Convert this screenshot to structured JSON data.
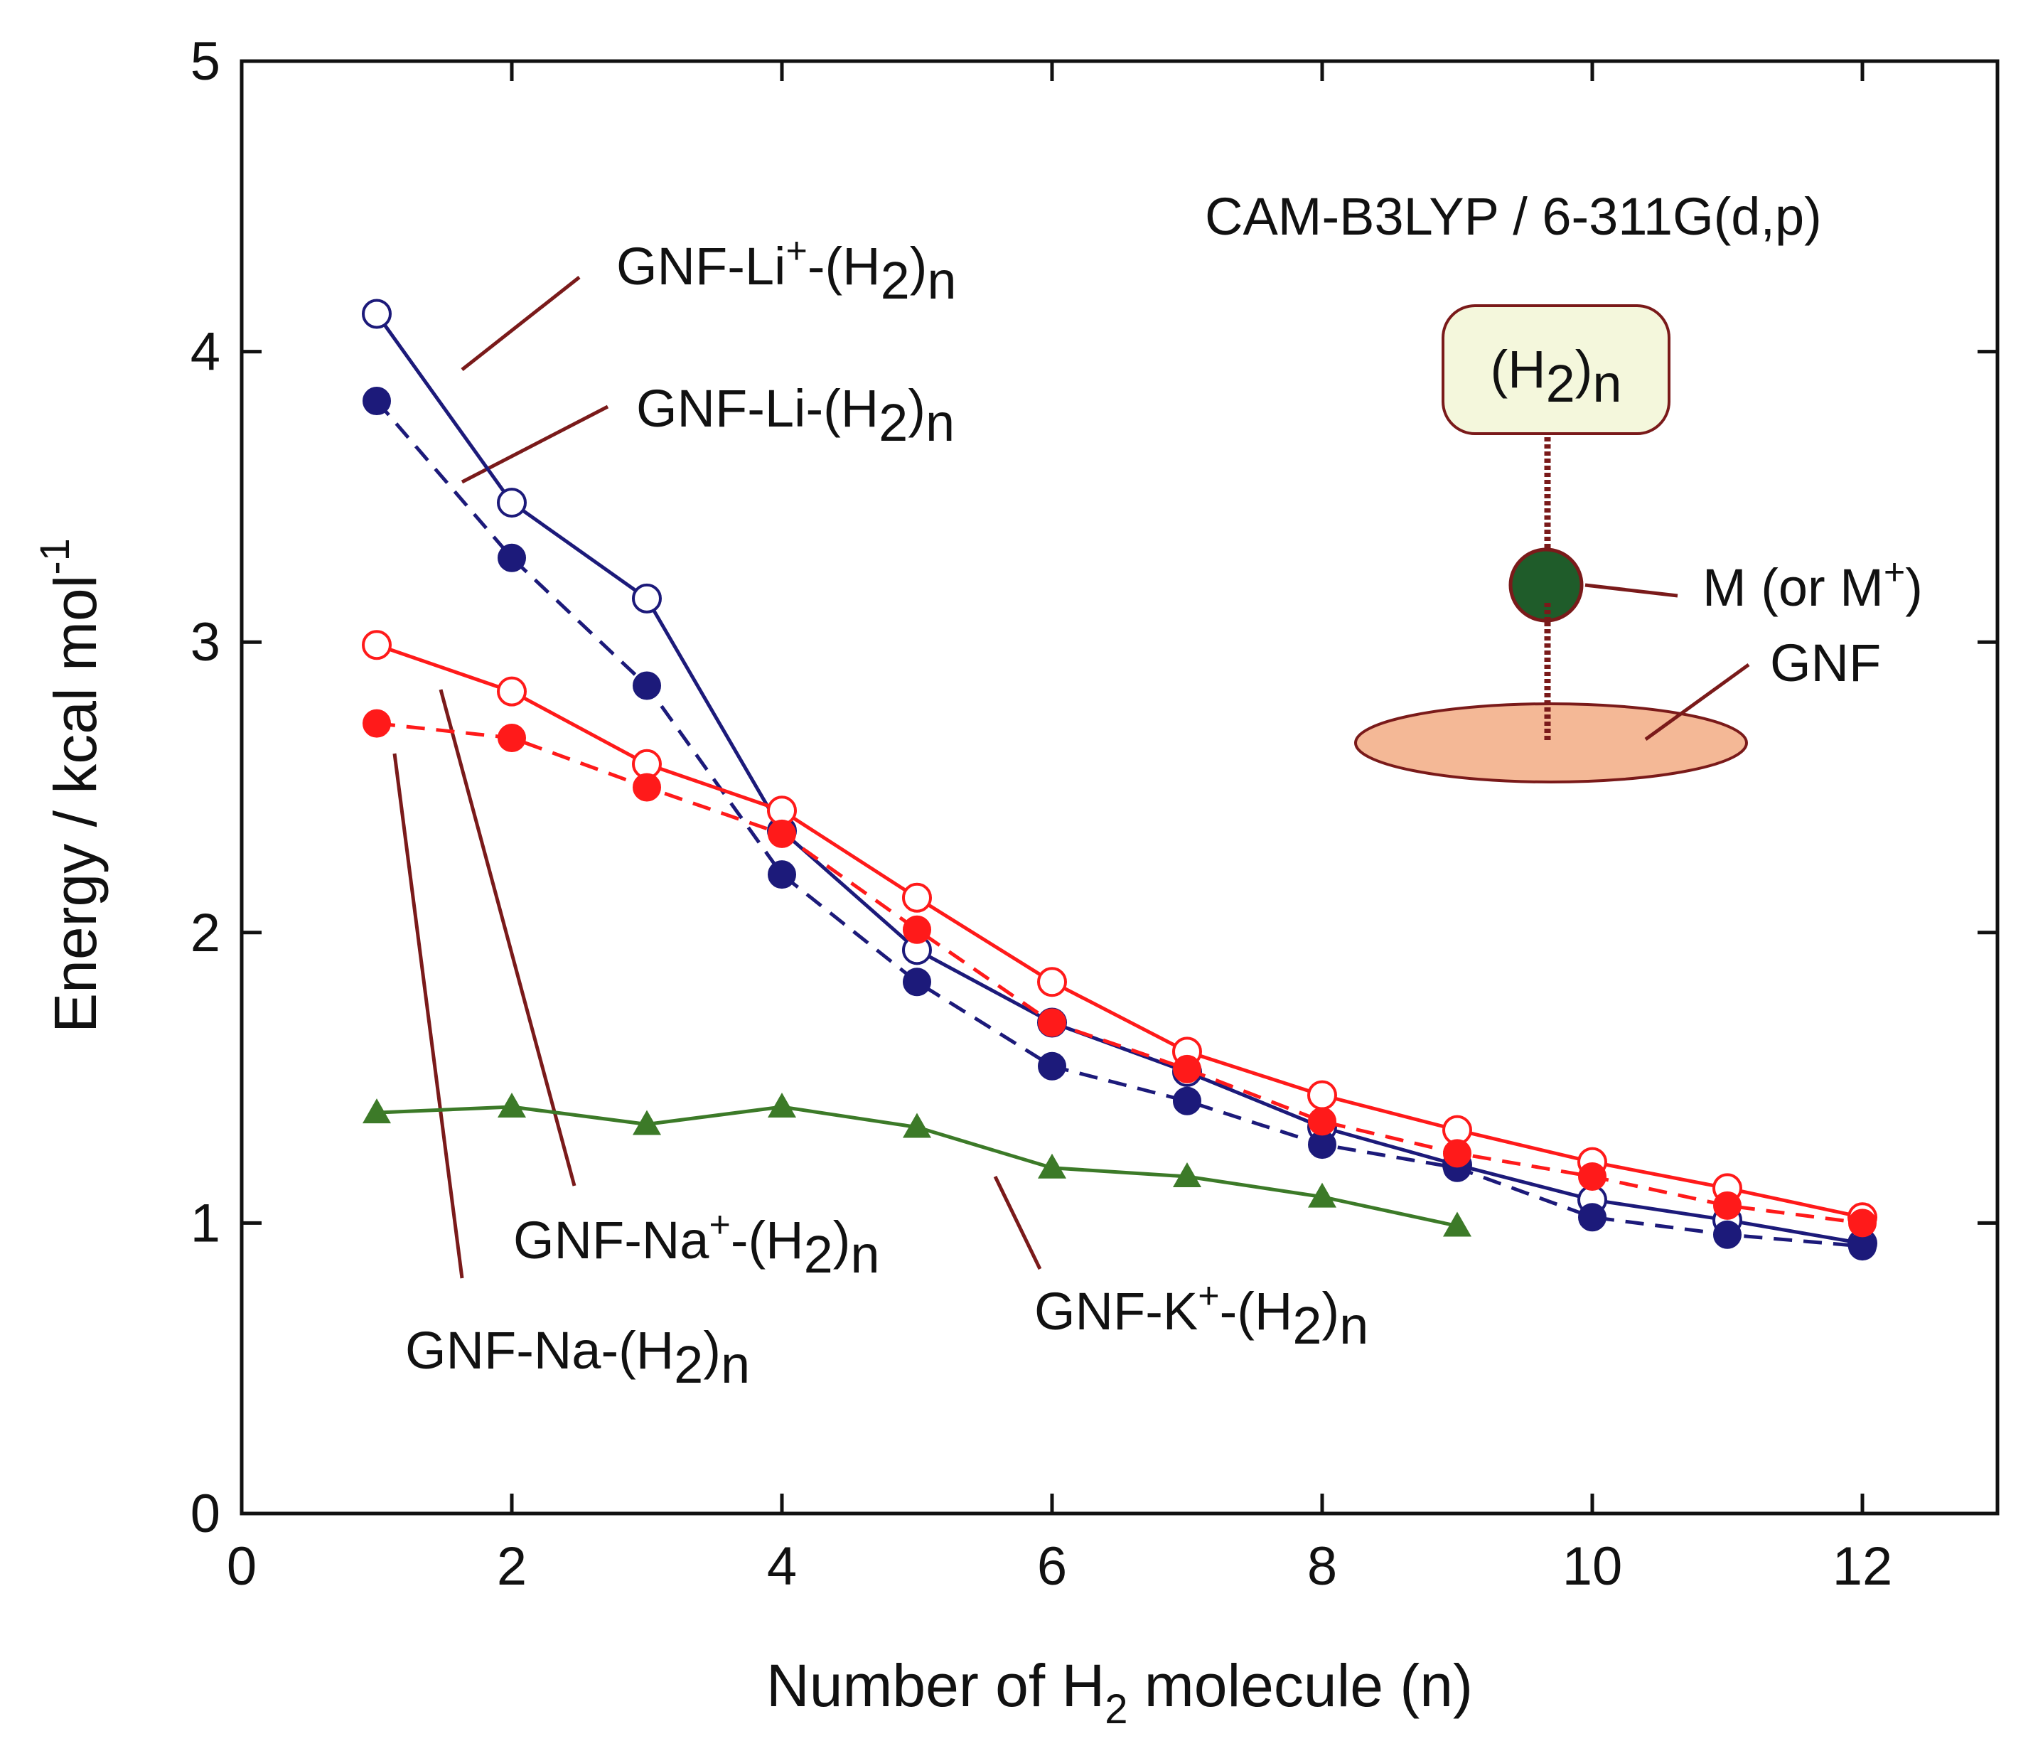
{
  "chart_data": {
    "type": "line",
    "title": "",
    "xlabel": "Number of H",
    "xlabel_sub": "2",
    "xlabel_tail": " molecule (n)",
    "ylabel": "Energy / kcal mol",
    "ylabel_sup": "-1",
    "xlim": [
      0,
      13
    ],
    "ylim": [
      0,
      5
    ],
    "xticks": [
      0,
      2,
      4,
      6,
      8,
      10,
      12
    ],
    "yticks": [
      0,
      1,
      2,
      3,
      4,
      5
    ],
    "method_label": "CAM-B3LYP / 6-311G(d,p)",
    "series": [
      {
        "name": "GNF-Li+-(H2)n",
        "color": "#1c1a7a",
        "marker": "open-circle",
        "dash": false,
        "x": [
          1,
          2,
          3,
          4,
          5,
          6,
          7,
          8,
          9,
          10,
          11,
          12
        ],
        "y": [
          4.13,
          3.48,
          3.15,
          2.35,
          1.94,
          1.69,
          1.52,
          1.33,
          1.2,
          1.08,
          1.01,
          0.93
        ]
      },
      {
        "name": "GNF-Li-(H2)n",
        "color": "#1c1a7a",
        "marker": "filled-circle",
        "dash": true,
        "x": [
          1,
          2,
          3,
          4,
          5,
          6,
          7,
          8,
          9,
          10,
          11,
          12
        ],
        "y": [
          3.83,
          3.29,
          2.85,
          2.2,
          1.83,
          1.54,
          1.42,
          1.27,
          1.19,
          1.02,
          0.96,
          0.92
        ]
      },
      {
        "name": "GNF-Na+-(H2)n",
        "color": "#ff1a1a",
        "marker": "open-circle",
        "dash": false,
        "x": [
          1,
          2,
          3,
          4,
          5,
          6,
          7,
          8,
          9,
          10,
          11,
          12
        ],
        "y": [
          2.99,
          2.83,
          2.58,
          2.42,
          2.12,
          1.83,
          1.59,
          1.44,
          1.32,
          1.21,
          1.12,
          1.02
        ]
      },
      {
        "name": "GNF-Na-(H2)n",
        "color": "#ff1a1a",
        "marker": "filled-circle",
        "dash": true,
        "x": [
          1,
          2,
          3,
          4,
          5,
          6,
          7,
          8,
          9,
          10,
          11,
          12
        ],
        "y": [
          2.72,
          2.67,
          2.5,
          2.34,
          2.01,
          1.69,
          1.53,
          1.35,
          1.24,
          1.16,
          1.06,
          1.0
        ]
      },
      {
        "name": "GNF-K+-(H2)n",
        "color": "#3c7a28",
        "marker": "filled-triangle",
        "dash": false,
        "x": [
          1,
          2,
          3,
          4,
          5,
          6,
          7,
          8,
          9
        ],
        "y": [
          1.38,
          1.4,
          1.34,
          1.4,
          1.33,
          1.19,
          1.16,
          1.09,
          0.99
        ]
      }
    ],
    "labels": {
      "li_plus": {
        "base": "GNF-Li",
        "sup": "+",
        "mid": "-(H",
        "sub": "2",
        "end": ")",
        "sub2": "n"
      },
      "li": {
        "base": "GNF-Li-(H",
        "sub": "2",
        "end": ")",
        "sub2": "n"
      },
      "na_plus": {
        "base": "GNF-Na",
        "sup": "+",
        "mid": "-(H",
        "sub": "2",
        "end": ")",
        "sub2": "n"
      },
      "na": {
        "base": "GNF-Na-(H",
        "sub": "2",
        "end": ")",
        "sub2": "n"
      },
      "k_plus": {
        "base": "GNF-K",
        "sup": "+",
        "mid": "-(H",
        "sub": "2",
        "end": ")",
        "sub2": "n"
      }
    },
    "schematic": {
      "box_open": "(H",
      "box_sub": "2",
      "box_close": ")",
      "box_sub2": "n",
      "metal_label": "M (or M",
      "metal_sup": "+",
      "metal_close": ")",
      "gnf_label": "GNF",
      "box_fill": "#f4f7dc",
      "box_stroke": "#7a1a1a",
      "metal_fill": "#1f5c2a",
      "disc_fill": "#f4b896",
      "disc_stroke": "#7a1a1a"
    },
    "leader_color": "#7a1a1a"
  }
}
